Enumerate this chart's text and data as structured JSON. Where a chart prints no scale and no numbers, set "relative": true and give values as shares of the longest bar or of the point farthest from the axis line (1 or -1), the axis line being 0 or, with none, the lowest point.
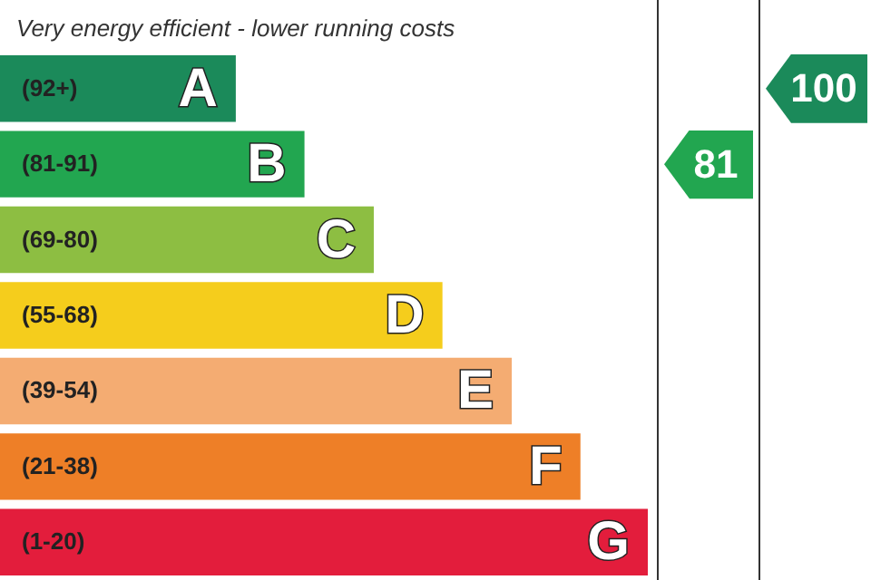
{
  "chart_data": {
    "type": "bar",
    "orientation": "horizontal",
    "relative": true,
    "title": "Very energy efficient - lower running costs",
    "categories": [
      "A",
      "B",
      "C",
      "D",
      "E",
      "F",
      "G"
    ],
    "values": [
      0.364,
      0.47,
      0.577,
      0.683,
      0.79,
      0.896,
      1
    ],
    "colors": [
      "#1b8a5a",
      "#22a650",
      "#8dbe42",
      "#f5cd1c",
      "#f4ac72",
      "#ee7f27",
      "#e31d3c"
    ],
    "data_labels": false,
    "annotations": [
      "(92+)",
      "(81-91)",
      "(69-80)",
      "(55-68)",
      "(39-54)",
      "(21-38)",
      "(1-20)",
      "81",
      "100"
    ]
  }
}
